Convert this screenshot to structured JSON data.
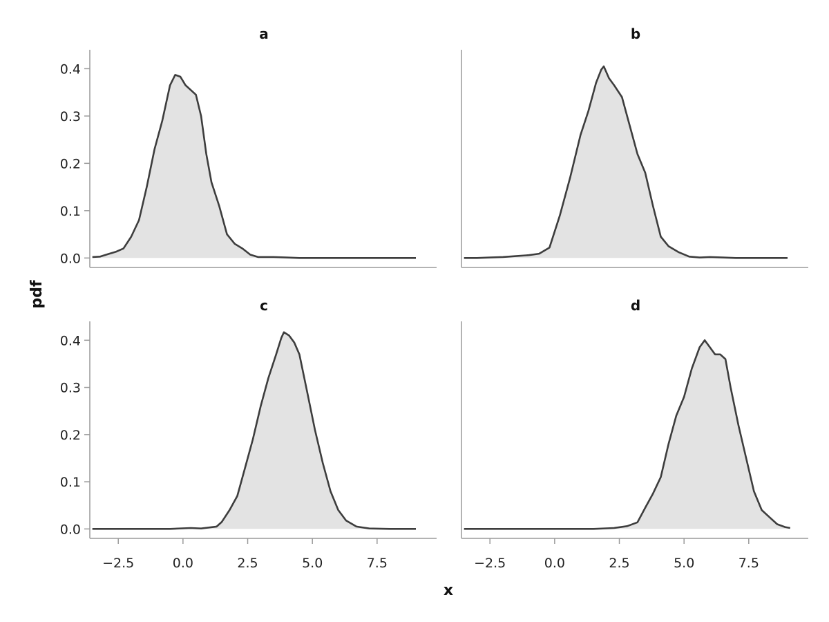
{
  "chart_data": {
    "type": "area",
    "xlabel": "x",
    "ylabel": "pdf",
    "xlim": [
      -3.6,
      9.8
    ],
    "ylim": [
      -0.02,
      0.44
    ],
    "x_ticks": [
      -2.5,
      0.0,
      2.5,
      5.0,
      7.5
    ],
    "x_tick_labels": [
      "−2.5",
      "0.0",
      "2.5",
      "5.0",
      "7.5"
    ],
    "y_ticks": [
      0.0,
      0.1,
      0.2,
      0.3,
      0.4
    ],
    "y_tick_labels": [
      "0.0",
      "0.1",
      "0.2",
      "0.3",
      "0.4"
    ],
    "grid": false,
    "panels": [
      {
        "title": "a",
        "x": [
          -3.5,
          -3.2,
          -2.9,
          -2.6,
          -2.3,
          -2.0,
          -1.7,
          -1.4,
          -1.1,
          -0.8,
          -0.5,
          -0.3,
          -0.1,
          0.1,
          0.3,
          0.5,
          0.7,
          0.9,
          1.1,
          1.4,
          1.7,
          2.0,
          2.3,
          2.6,
          2.9,
          3.2,
          3.5,
          4.0,
          4.5,
          5.0,
          6.0,
          7.0,
          8.0,
          9.0
        ],
        "y": [
          0.002,
          0.003,
          0.008,
          0.013,
          0.02,
          0.045,
          0.08,
          0.15,
          0.23,
          0.29,
          0.365,
          0.387,
          0.383,
          0.365,
          0.355,
          0.345,
          0.3,
          0.22,
          0.16,
          0.11,
          0.05,
          0.03,
          0.02,
          0.007,
          0.002,
          0.002,
          0.002,
          0.001,
          0.0,
          0.0,
          0.0,
          0.0,
          0.0,
          0.0
        ]
      },
      {
        "title": "b",
        "x": [
          -3.5,
          -3.0,
          -2.5,
          -2.0,
          -1.5,
          -1.0,
          -0.6,
          -0.2,
          0.2,
          0.6,
          1.0,
          1.3,
          1.6,
          1.8,
          1.9,
          2.1,
          2.3,
          2.6,
          2.9,
          3.2,
          3.5,
          3.8,
          4.1,
          4.4,
          4.8,
          5.2,
          5.6,
          6.0,
          6.5,
          7.0,
          8.0,
          9.0
        ],
        "y": [
          0.0,
          0.0,
          0.001,
          0.002,
          0.004,
          0.006,
          0.009,
          0.022,
          0.09,
          0.17,
          0.26,
          0.31,
          0.37,
          0.398,
          0.405,
          0.38,
          0.365,
          0.34,
          0.28,
          0.22,
          0.18,
          0.11,
          0.045,
          0.025,
          0.012,
          0.003,
          0.001,
          0.002,
          0.001,
          0.0,
          0.0,
          0.0
        ]
      },
      {
        "title": "c",
        "x": [
          -3.5,
          -2.5,
          -1.5,
          -0.5,
          0.3,
          0.7,
          1.0,
          1.3,
          1.5,
          1.8,
          2.1,
          2.4,
          2.7,
          3.0,
          3.3,
          3.6,
          3.8,
          3.9,
          4.1,
          4.3,
          4.5,
          4.8,
          5.1,
          5.4,
          5.7,
          6.0,
          6.3,
          6.7,
          7.2,
          8.0,
          9.0
        ],
        "y": [
          0.0,
          0.0,
          0.0,
          0.0,
          0.002,
          0.001,
          0.003,
          0.005,
          0.015,
          0.04,
          0.07,
          0.13,
          0.19,
          0.26,
          0.32,
          0.37,
          0.405,
          0.417,
          0.41,
          0.395,
          0.37,
          0.29,
          0.21,
          0.14,
          0.08,
          0.04,
          0.018,
          0.005,
          0.001,
          0.0,
          0.0
        ]
      },
      {
        "title": "d",
        "x": [
          -3.5,
          -1.5,
          0.5,
          1.5,
          2.3,
          2.8,
          3.2,
          3.5,
          3.8,
          4.1,
          4.4,
          4.7,
          5.0,
          5.3,
          5.6,
          5.8,
          6.0,
          6.2,
          6.4,
          6.6,
          6.8,
          7.1,
          7.4,
          7.7,
          8.0,
          8.3,
          8.6,
          8.9,
          9.1
        ],
        "y": [
          0.0,
          0.0,
          0.0,
          0.0,
          0.002,
          0.006,
          0.014,
          0.045,
          0.075,
          0.11,
          0.18,
          0.24,
          0.28,
          0.34,
          0.385,
          0.4,
          0.385,
          0.37,
          0.37,
          0.36,
          0.3,
          0.22,
          0.15,
          0.08,
          0.04,
          0.025,
          0.01,
          0.004,
          0.002
        ]
      }
    ]
  }
}
